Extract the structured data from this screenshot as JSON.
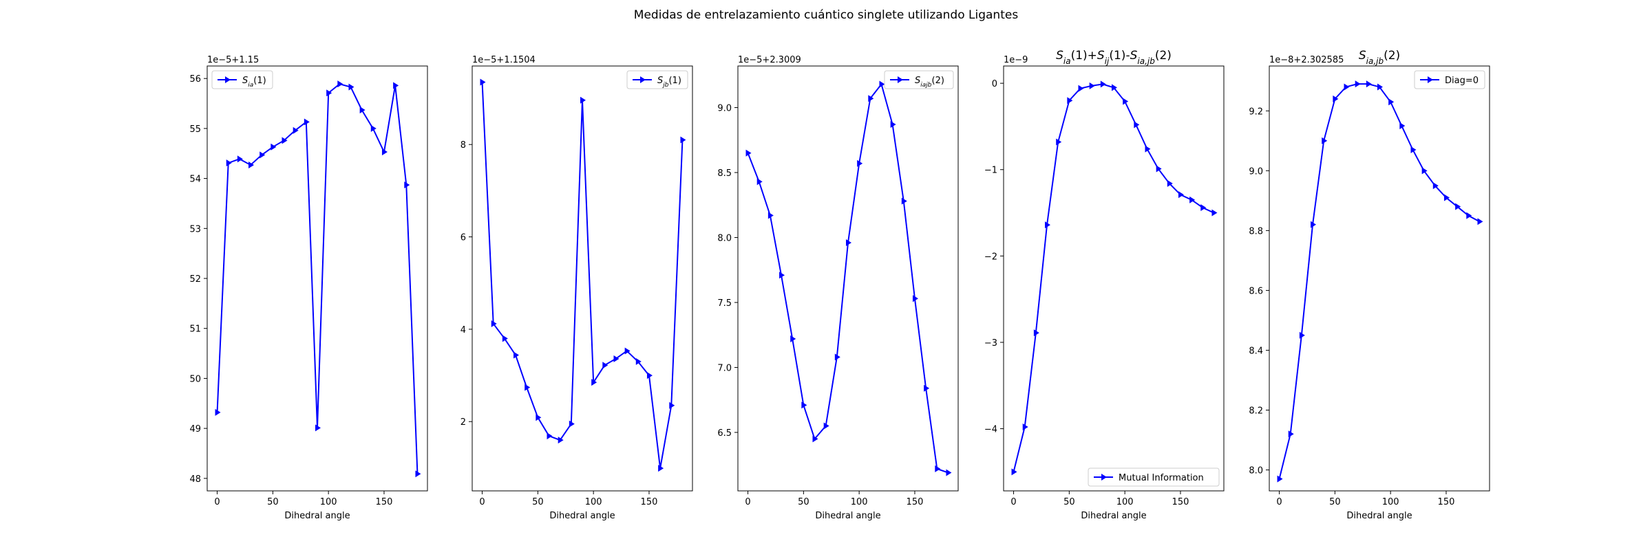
{
  "figure_title": "Medidas de entrelazamiento cuántico singlete utilizando Ligantes",
  "line_color": "#0000ff",
  "marker": "triangle-right",
  "chart_data": [
    {
      "type": "line",
      "title": "",
      "xlabel": "Dihedral angle",
      "ylabel": "",
      "offset_text": "1e−5+1.15",
      "legend": {
        "label_base": "S",
        "label_sub": "ia",
        "label_tail": "(1)",
        "placement": "top-left"
      },
      "xlim": [
        -9,
        189
      ],
      "ylim": [
        47.75,
        56.25
      ],
      "xticks": [
        0,
        50,
        100,
        150
      ],
      "yticks": [
        48,
        49,
        50,
        51,
        52,
        53,
        54,
        55,
        56
      ],
      "x": [
        0,
        10,
        20,
        30,
        40,
        50,
        60,
        70,
        80,
        90,
        100,
        110,
        120,
        130,
        140,
        150,
        160,
        170,
        180
      ],
      "series": [
        {
          "name": "S_ia(1)",
          "values": [
            49.32,
            54.31,
            54.39,
            54.27,
            54.47,
            54.63,
            54.76,
            54.96,
            55.13,
            49.01,
            55.71,
            55.89,
            55.83,
            55.37,
            55.0,
            54.53,
            55.86,
            53.87,
            48.09
          ]
        }
      ]
    },
    {
      "type": "line",
      "title": "",
      "xlabel": "Dihedral angle",
      "ylabel": "",
      "offset_text": "1e−5+1.1504",
      "legend": {
        "label_base": "S",
        "label_sub": "jb",
        "label_tail": "(1)",
        "placement": "top-right"
      },
      "xlim": [
        -9,
        189
      ],
      "ylim": [
        0.5,
        9.7
      ],
      "xticks": [
        0,
        50,
        100,
        150
      ],
      "yticks": [
        2,
        4,
        6,
        8
      ],
      "x": [
        0,
        10,
        20,
        30,
        40,
        50,
        60,
        70,
        80,
        90,
        100,
        110,
        120,
        130,
        140,
        150,
        160,
        170,
        180
      ],
      "series": [
        {
          "name": "S_jb(1)",
          "values": [
            9.35,
            4.12,
            3.8,
            3.44,
            2.74,
            2.09,
            1.69,
            1.6,
            1.95,
            8.96,
            2.85,
            3.22,
            3.36,
            3.53,
            3.3,
            3.0,
            0.99,
            2.35,
            8.1
          ]
        }
      ]
    },
    {
      "type": "line",
      "title": "",
      "xlabel": "Dihedral angle",
      "ylabel": "",
      "offset_text": "1e−5+2.3009",
      "legend": {
        "label_base": "S",
        "label_sub": "iajb",
        "label_tail": "(2)",
        "placement": "top-right"
      },
      "xlim": [
        -9,
        189
      ],
      "ylim": [
        6.05,
        9.32
      ],
      "xticks": [
        0,
        50,
        100,
        150
      ],
      "yticks": [
        6.5,
        7.0,
        7.5,
        8.0,
        8.5,
        9.0
      ],
      "x": [
        0,
        10,
        20,
        30,
        40,
        50,
        60,
        70,
        80,
        90,
        100,
        110,
        120,
        130,
        140,
        150,
        160,
        170,
        180
      ],
      "series": [
        {
          "name": "S_iajb(2)",
          "values": [
            8.65,
            8.43,
            8.17,
            7.71,
            7.22,
            6.71,
            6.45,
            6.55,
            7.08,
            7.96,
            8.57,
            9.07,
            9.18,
            8.87,
            8.28,
            7.53,
            6.84,
            6.22,
            6.19
          ]
        }
      ]
    },
    {
      "type": "line",
      "title": "S_ia(1)+S_ij(1)-S_ia,jb(2)",
      "xlabel": "Dihedral angle",
      "ylabel": "",
      "offset_text": "1e−9",
      "legend": {
        "label": "Mutual Information",
        "placement": "bottom-right"
      },
      "xlim": [
        -9,
        189
      ],
      "ylim": [
        -4.72,
        0.2
      ],
      "xticks": [
        0,
        50,
        100,
        150
      ],
      "yticks": [
        -4,
        -3,
        -2,
        -1,
        0
      ],
      "x": [
        0,
        10,
        20,
        30,
        40,
        50,
        60,
        70,
        80,
        90,
        100,
        110,
        120,
        130,
        140,
        150,
        160,
        170,
        180
      ],
      "series": [
        {
          "name": "Mutual Information",
          "values": [
            -4.5,
            -3.98,
            -2.89,
            -1.64,
            -0.68,
            -0.2,
            -0.06,
            -0.03,
            -0.01,
            -0.05,
            -0.21,
            -0.48,
            -0.76,
            -0.99,
            -1.16,
            -1.29,
            -1.35,
            -1.44,
            -1.5
          ]
        }
      ]
    },
    {
      "type": "line",
      "title": "S_ia,jb(2)",
      "xlabel": "Dihedral angle",
      "ylabel": "",
      "offset_text": "1e−8+2.302585",
      "legend": {
        "label": "Diag=0",
        "placement": "top-right"
      },
      "xlim": [
        -9,
        189
      ],
      "ylim": [
        7.93,
        9.35
      ],
      "xticks": [
        0,
        50,
        100,
        150
      ],
      "yticks": [
        8.0,
        8.2,
        8.4,
        8.6,
        8.8,
        9.0,
        9.2
      ],
      "x": [
        0,
        10,
        20,
        30,
        40,
        50,
        60,
        70,
        80,
        90,
        100,
        110,
        120,
        130,
        140,
        150,
        160,
        170,
        180
      ],
      "series": [
        {
          "name": "Diag=0",
          "values": [
            7.97,
            8.12,
            8.45,
            8.82,
            9.1,
            9.24,
            9.28,
            9.29,
            9.29,
            9.28,
            9.23,
            9.15,
            9.07,
            9.0,
            8.95,
            8.91,
            8.88,
            8.85,
            8.83
          ]
        }
      ]
    }
  ]
}
